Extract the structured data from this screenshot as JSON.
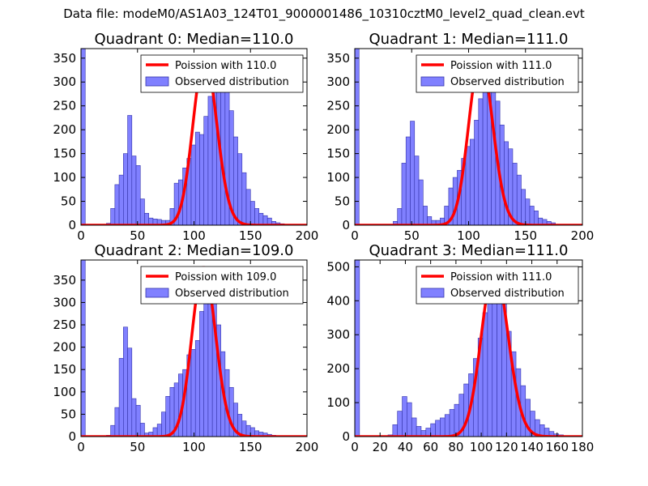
{
  "figure": {
    "suptitle": "Data file: modeM0/AS1A03_124T01_9000001486_10310cztM0_level2_quad_clean.evt"
  },
  "colors": {
    "bar_fill": "#8080ff",
    "bar_edge": "#3333aa",
    "curve": "#ff0000",
    "axis": "#000000",
    "background": "#ffffff"
  },
  "chart_data": [
    {
      "type": "bar",
      "title": "Quadrant 0: Median=110.0",
      "xlim": [
        0,
        200
      ],
      "ylim": [
        0,
        370
      ],
      "xticks": [
        0,
        50,
        100,
        150,
        200
      ],
      "yticks": [
        0,
        50,
        100,
        150,
        200,
        250,
        300,
        350
      ],
      "bin_width": 3.75,
      "bin_start": 0,
      "values": [
        370,
        0,
        0,
        0,
        0,
        0,
        4,
        35,
        85,
        105,
        150,
        230,
        145,
        125,
        55,
        25,
        15,
        13,
        12,
        10,
        10,
        35,
        88,
        95,
        120,
        140,
        168,
        195,
        190,
        228,
        270,
        300,
        345,
        320,
        280,
        240,
        185,
        150,
        110,
        75,
        50,
        35,
        25,
        20,
        15,
        8,
        5,
        3,
        1,
        1,
        0,
        0,
        0
      ],
      "legend": [
        "Poission with 110.0",
        "Observed distribution"
      ],
      "legend_position": "top-right",
      "curve_mean": 110.0,
      "curve_peak": 352
    },
    {
      "type": "bar",
      "title": "Quadrant 1: Median=111.0",
      "xlim": [
        0,
        200
      ],
      "ylim": [
        0,
        370
      ],
      "xticks": [
        0,
        50,
        100,
        150,
        200
      ],
      "yticks": [
        0,
        50,
        100,
        150,
        200,
        250,
        300,
        350
      ],
      "bin_width": 3.75,
      "bin_start": 0,
      "values": [
        370,
        0,
        0,
        0,
        0,
        0,
        0,
        0,
        0,
        8,
        35,
        130,
        185,
        218,
        145,
        95,
        40,
        18,
        10,
        10,
        15,
        40,
        78,
        100,
        115,
        140,
        165,
        180,
        220,
        265,
        300,
        345,
        320,
        260,
        210,
        175,
        160,
        130,
        105,
        75,
        55,
        40,
        30,
        15,
        12,
        8,
        5,
        2,
        1,
        1,
        0,
        0,
        0
      ],
      "legend": [
        "Poission with 111.0",
        "Observed distribution"
      ],
      "legend_position": "top-right",
      "curve_mean": 111.0,
      "curve_peak": 350
    },
    {
      "type": "bar",
      "title": "Quadrant 2: Median=109.0",
      "xlim": [
        0,
        200
      ],
      "ylim": [
        0,
        395
      ],
      "xticks": [
        0,
        50,
        100,
        150,
        200
      ],
      "yticks": [
        0,
        50,
        100,
        150,
        200,
        250,
        300,
        350
      ],
      "bin_width": 3.75,
      "bin_start": 0,
      "values": [
        395,
        0,
        0,
        0,
        0,
        0,
        3,
        25,
        65,
        175,
        245,
        198,
        85,
        70,
        30,
        8,
        10,
        20,
        28,
        55,
        90,
        110,
        120,
        140,
        150,
        183,
        195,
        215,
        280,
        345,
        370,
        330,
        250,
        190,
        150,
        110,
        75,
        50,
        35,
        25,
        20,
        13,
        10,
        8,
        5,
        3,
        2,
        1,
        1,
        0,
        0,
        0,
        0
      ],
      "legend": [
        "Poission with 109.0",
        "Observed distribution"
      ],
      "legend_position": "top-right",
      "curve_mean": 109.0,
      "curve_peak": 378
    },
    {
      "type": "bar",
      "title": "Quadrant 3: Median=111.0",
      "xlim": [
        0,
        180
      ],
      "ylim": [
        0,
        520
      ],
      "xticks": [
        0,
        20,
        40,
        60,
        80,
        100,
        120,
        140,
        160,
        180
      ],
      "yticks": [
        0,
        100,
        200,
        300,
        400,
        500
      ],
      "bin_width": 3.75,
      "bin_start": 0,
      "values": [
        520,
        0,
        0,
        0,
        0,
        0,
        0,
        5,
        35,
        75,
        118,
        100,
        55,
        30,
        18,
        25,
        38,
        48,
        55,
        65,
        80,
        95,
        125,
        155,
        185,
        230,
        290,
        365,
        425,
        470,
        430,
        395,
        310,
        250,
        200,
        150,
        110,
        75,
        50,
        35,
        25,
        15,
        8,
        5,
        2,
        1,
        0,
        0
      ],
      "legend": [
        "Poission with 111.0",
        "Observed distribution"
      ],
      "legend_position": "top-right",
      "curve_mean": 111.0,
      "curve_peak": 495
    }
  ]
}
